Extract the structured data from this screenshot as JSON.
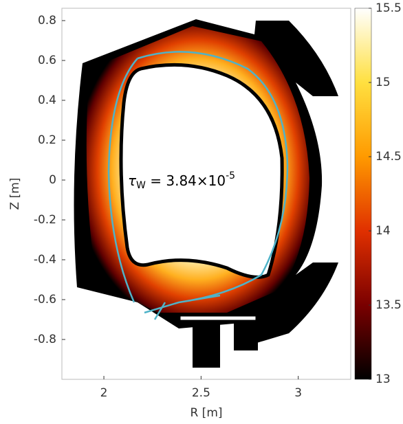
{
  "chart_data": {
    "type": "heatmap",
    "xlabel": "R [m]",
    "ylabel": "Z [m]",
    "xlim": [
      1.784,
      3.27
    ],
    "xticks": [
      2,
      2.5,
      3
    ],
    "ylim": [
      -1.0,
      0.862
    ],
    "yticks": [
      0.8,
      0.6,
      0.4,
      0.2,
      0,
      -0.2,
      -0.4,
      -0.6,
      -0.8
    ],
    "clim": [
      13,
      15.5
    ],
    "cticks": [
      13,
      13.5,
      14,
      14.5,
      15,
      15.5
    ],
    "colormap": [
      "#000000",
      "#7a0000",
      "#e03000",
      "#ff9a00",
      "#ffe040",
      "#ffffff"
    ],
    "separatrix_color": "#4fb3c8",
    "annotation": {
      "symbol": "τ",
      "subscript": "W",
      "text": " = 3.84×10",
      "exponent": "-5"
    }
  }
}
